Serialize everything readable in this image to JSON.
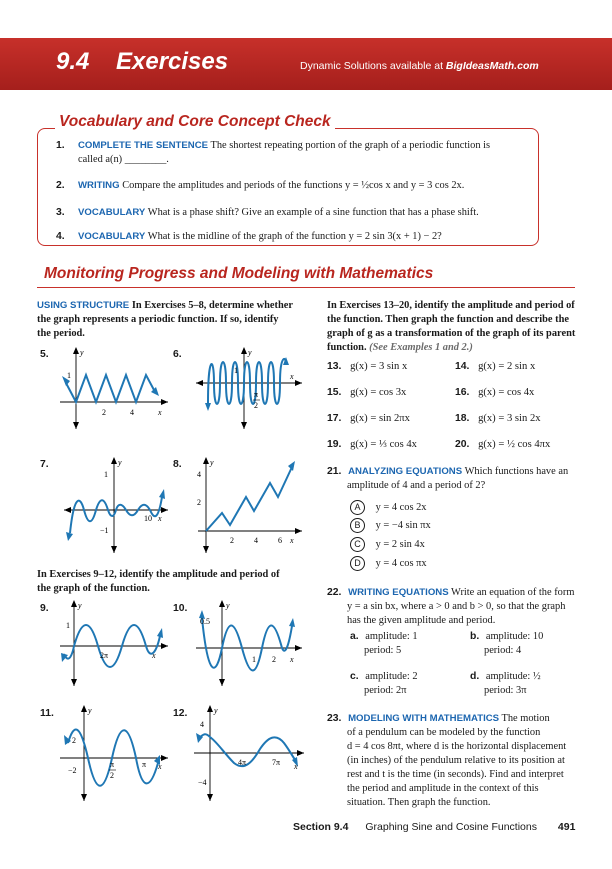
{
  "header": {
    "section_number": "9.4",
    "section_title": "Exercises",
    "dynamic_text": "Dynamic Solutions available at",
    "dynamic_site": "BigIdeasMath.com"
  },
  "vocab": {
    "title": "Vocabulary and Core Concept Check",
    "items": [
      {
        "num": "1.",
        "kw": "COMPLETE THE SENTENCE",
        "text": "The shortest repeating portion of the graph of a periodic function is",
        "text2": "called a(n) ________."
      },
      {
        "num": "2.",
        "kw": "WRITING",
        "text": "Compare the amplitudes and periods of the functions y = ½cos x and y = 3 cos 2x."
      },
      {
        "num": "3.",
        "kw": "VOCABULARY",
        "text": "What is a phase shift? Give an example of a sine function that has a phase shift."
      },
      {
        "num": "4.",
        "kw": "VOCABULARY",
        "text": "What is the midline of the graph of the function y = 2 sin 3(x + 1) − 2?"
      }
    ]
  },
  "monitoring": {
    "title": "Monitoring Progress and Modeling with Mathematics",
    "using_structure": {
      "kw": "USING STRUCTURE",
      "lines": [
        "In Exercises 5–8, determine whether",
        "the graph represents a periodic function. If so, identify",
        "the period."
      ]
    },
    "graphs_a": [
      {
        "num": "5.",
        "ticks": [
          "1",
          "2",
          "4"
        ],
        "x": "x",
        "y": "y"
      },
      {
        "num": "6.",
        "ticks": [
          "1",
          "π",
          "2"
        ],
        "x": "x",
        "y": "y"
      },
      {
        "num": "7.",
        "ticks": [
          "1",
          "−1",
          "10"
        ],
        "x": "x",
        "y": "y"
      },
      {
        "num": "8.",
        "ticks": [
          "4",
          "2",
          "2",
          "4",
          "6"
        ],
        "x": "x",
        "y": "y"
      }
    ],
    "ex9_12_lines": [
      "In Exercises 9–12, identify the amplitude and period of",
      "the graph of the function."
    ],
    "graphs_b": [
      {
        "num": "9.",
        "ticks": [
          "1",
          "2π"
        ],
        "x": "x",
        "y": "y"
      },
      {
        "num": "10.",
        "ticks": [
          "0.5",
          "1",
          "2"
        ],
        "x": "x",
        "y": "y"
      },
      {
        "num": "11.",
        "ticks": [
          "2",
          "−2",
          "π",
          "2",
          "π"
        ],
        "x": "x",
        "y": "y"
      },
      {
        "num": "12.",
        "ticks": [
          "4",
          "4π",
          "7π",
          "−4"
        ],
        "x": "x",
        "y": "y"
      }
    ],
    "ex13_20_lines": [
      "In Exercises 13–20, identify the amplitude and period of",
      "the function. Then graph the function and describe the",
      "graph of g as a transformation of the graph of its parent",
      "function."
    ],
    "see_examples": "(See Examples 1 and 2.)",
    "functions": [
      {
        "num": "13.",
        "f": "g(x) = 3 sin x"
      },
      {
        "num": "14.",
        "f": "g(x) = 2 sin x"
      },
      {
        "num": "15.",
        "f": "g(x) = cos 3x"
      },
      {
        "num": "16.",
        "f": "g(x) = cos 4x"
      },
      {
        "num": "17.",
        "f": "g(x) = sin 2πx"
      },
      {
        "num": "18.",
        "f": "g(x) = 3 sin 2x"
      },
      {
        "num": "19.",
        "f": "g(x) = ⅓ cos 4x"
      },
      {
        "num": "20.",
        "f": "g(x) = ½ cos 4πx"
      }
    ],
    "ex21": {
      "num": "21.",
      "kw": "ANALYZING EQUATIONS",
      "text": "Which functions have an",
      "text2": "amplitude of 4 and a period of 2?",
      "options": [
        {
          "letter": "A",
          "text": "y = 4 cos 2x"
        },
        {
          "letter": "B",
          "text": "y = −4 sin πx"
        },
        {
          "letter": "C",
          "text": "y = 2 sin 4x"
        },
        {
          "letter": "D",
          "text": "y = 4 cos πx"
        }
      ]
    },
    "ex22": {
      "num": "22.",
      "kw": "WRITING EQUATIONS",
      "text": "Write an equation of the form",
      "lines": [
        "y = a sin bx, where a > 0 and b > 0, so that the graph",
        "has the given amplitude and period."
      ],
      "parts": [
        {
          "letter": "a.",
          "amp": "amplitude: 1",
          "per": "period: 5"
        },
        {
          "letter": "b.",
          "amp": "amplitude: 10",
          "per": "period: 4"
        },
        {
          "letter": "c.",
          "amp": "amplitude: 2",
          "per": "period: 2π"
        },
        {
          "letter": "d.",
          "amp": "amplitude: ½",
          "per": "period: 3π"
        }
      ]
    },
    "ex23": {
      "num": "23.",
      "kw": "MODELING WITH MATHEMATICS",
      "text": "The motion",
      "lines": [
        "of a pendulum can be modeled by the function",
        "d = 4 cos 8πt, where d is the horizontal displacement",
        "(in inches) of the pendulum relative to its position at",
        "rest and t is the time (in seconds). Find and interpret",
        "the period and amplitude in the context of this",
        "situation. Then graph the function."
      ]
    }
  },
  "footer": {
    "section": "Section 9.4",
    "title": "Graphing Sine and Cosine Functions",
    "page": "491"
  }
}
